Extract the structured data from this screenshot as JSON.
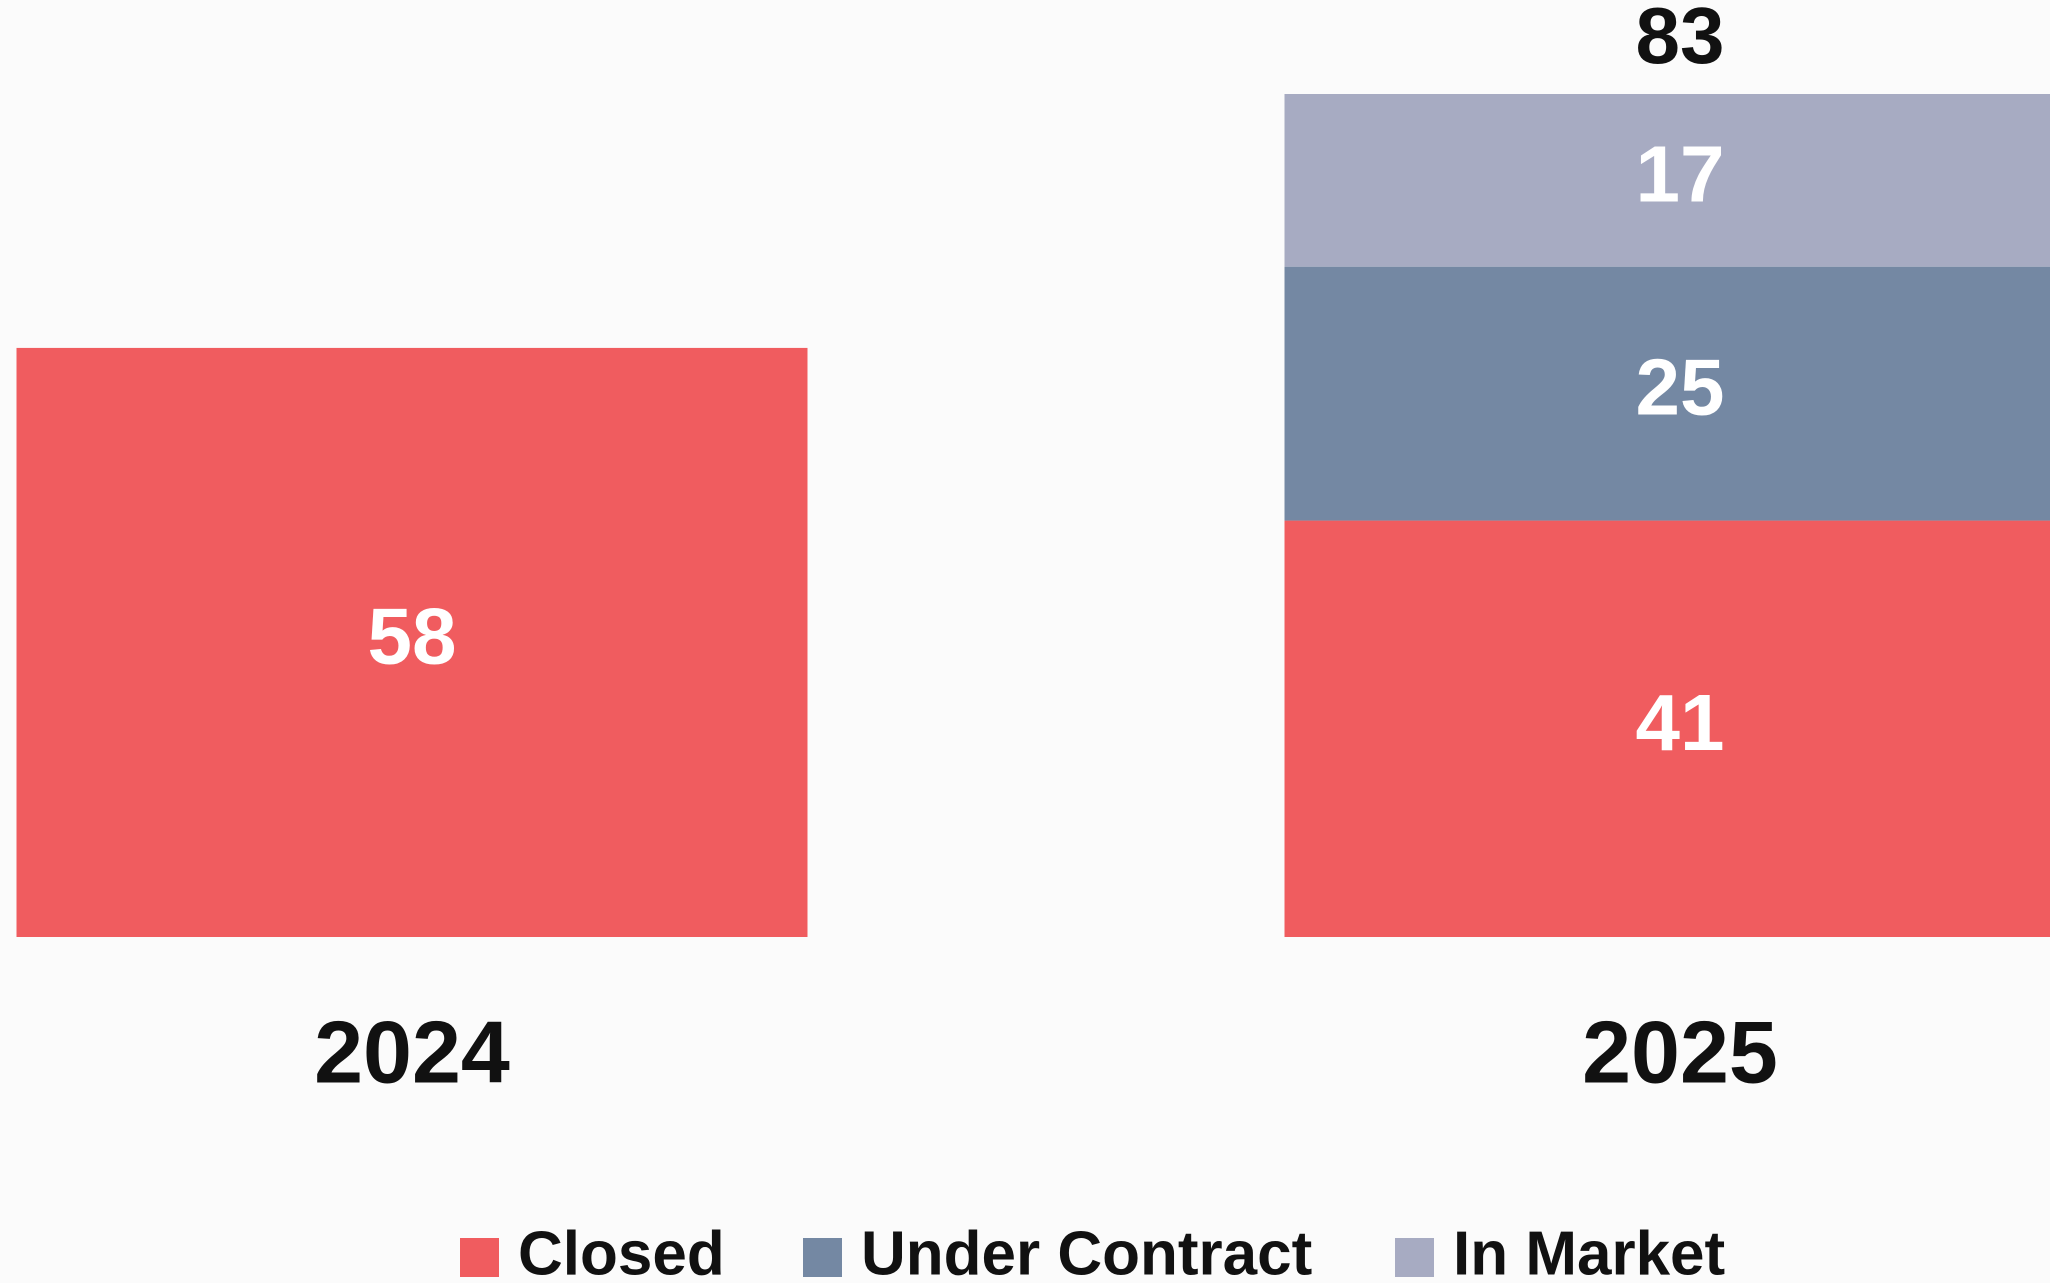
{
  "chart_data": {
    "type": "stacked-bar",
    "categories": [
      "2024",
      "2025"
    ],
    "series": [
      {
        "name": "Closed",
        "color": "#f05c5f",
        "values": [
          58,
          41
        ]
      },
      {
        "name": "Under Contract",
        "color": "#7488a3",
        "values": [
          null,
          25
        ]
      },
      {
        "name": "In Market",
        "color": "#a7abc2",
        "values": [
          null,
          17
        ]
      }
    ],
    "totals": [
      null,
      83
    ],
    "legend": "bottom"
  }
}
